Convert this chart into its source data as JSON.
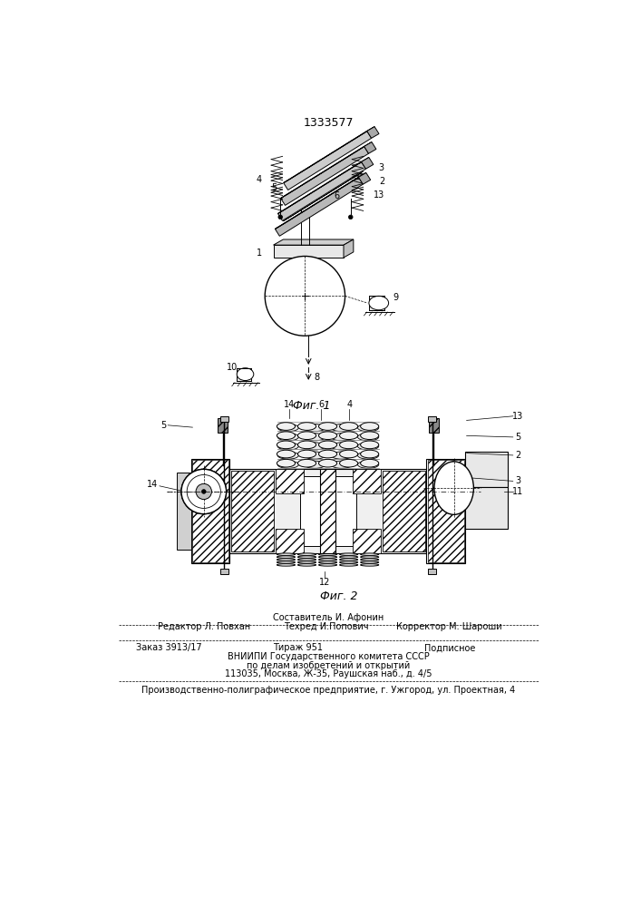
{
  "patent_number": "1333577",
  "fig1_caption": "Фиг. 1",
  "fig2_caption": "Фиг. 2",
  "footer_sestavitel": "Составитель И. Афонин",
  "footer_redaktor": "Редактор Л. Повхан",
  "footer_tekhred": "Техред И.Попович",
  "footer_korrektor": "Корректор М. Шароши",
  "footer_order": "Заказ 3913/17",
  "footer_tirazh": "Тираж 951",
  "footer_podp": "Подписное",
  "footer_vnipi": "ВНИИПИ Государственного комитета СССР",
  "footer_vnipi2": "по делам изобретений и открытий",
  "footer_address": "113035, Москва, Ж-35, Раушская наб., д. 4/5",
  "footer_plant": "Производственно-полиграфическое предприятие, г. Ужгород, ул. Проектная, 4",
  "bg_color": "#ffffff"
}
